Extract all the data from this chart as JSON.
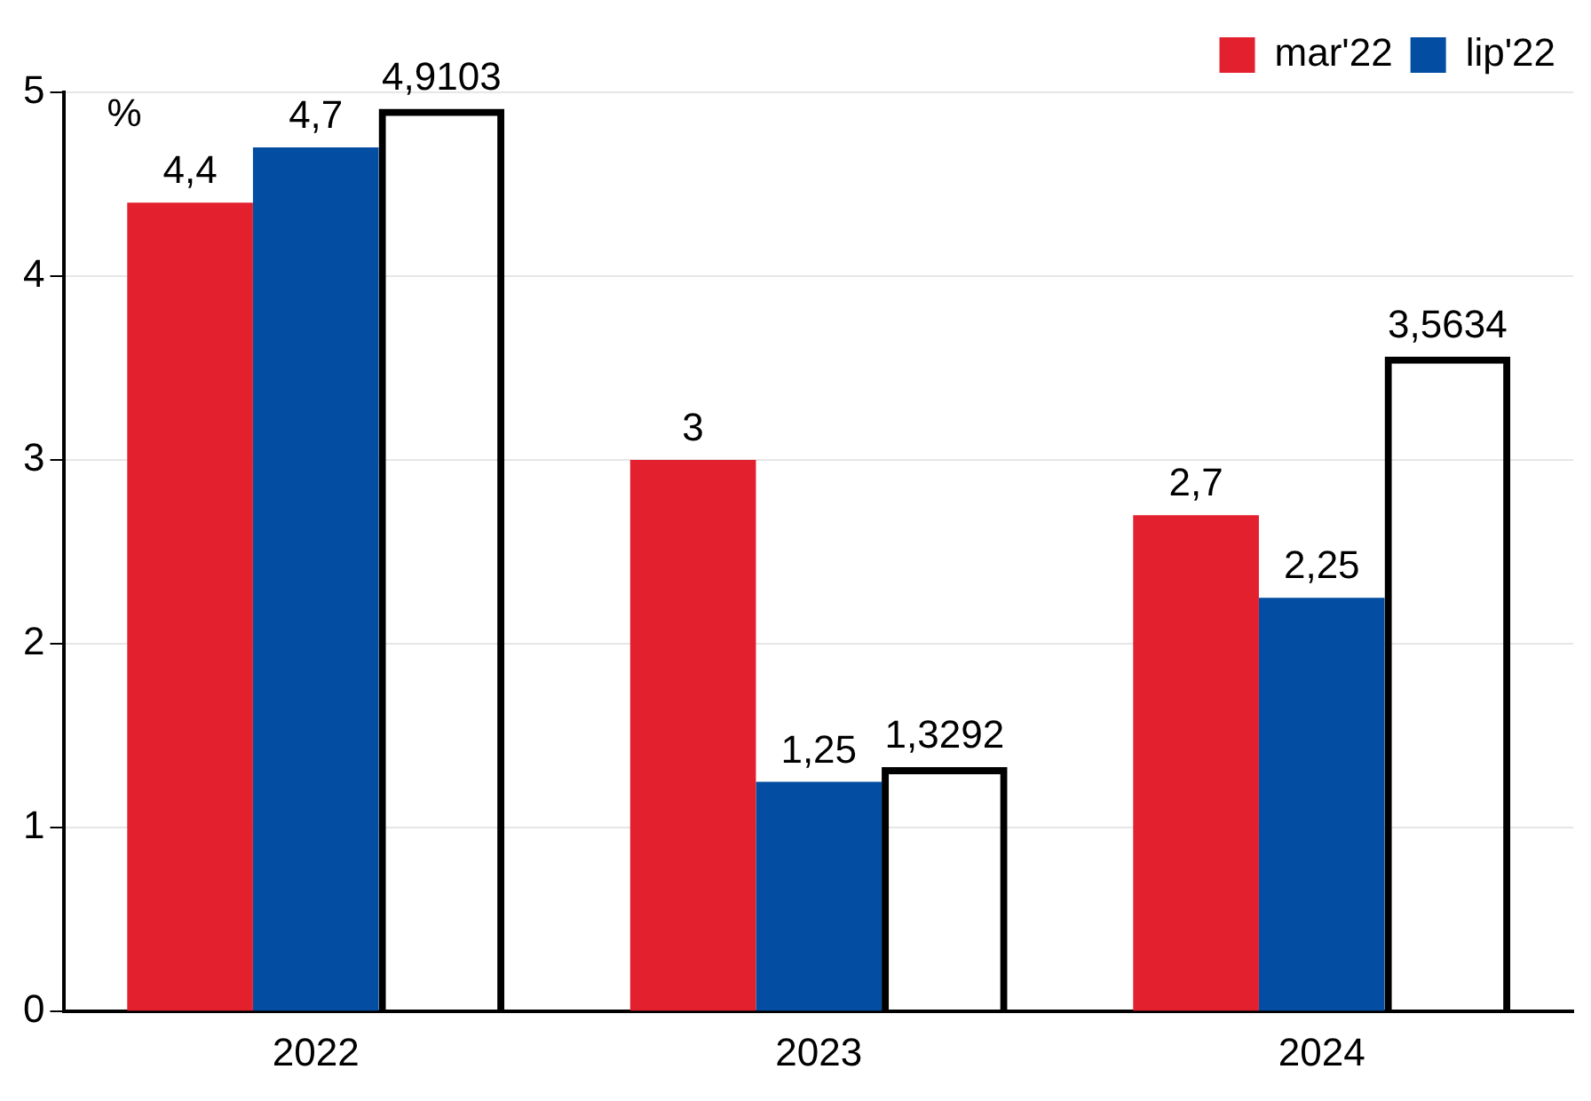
{
  "chart_data": {
    "type": "bar",
    "categories": [
      "2022",
      "2023",
      "2024"
    ],
    "series": [
      {
        "name": "mar'22",
        "color": "#e3202e",
        "values": [
          4.4,
          3,
          2.7
        ],
        "value_labels": [
          "4,4",
          "3",
          "2,7"
        ]
      },
      {
        "name": "lip'22",
        "color": "#034ea2",
        "values": [
          4.7,
          1.25,
          2.25
        ],
        "value_labels": [
          "4,7",
          "1,25",
          "2,25"
        ]
      },
      {
        "color": "#000000",
        "values": [
          4.9103,
          1.3292,
          3.5634
        ],
        "value_labels": [
          "4,9103",
          "1,3292",
          "3,5634"
        ]
      }
    ],
    "ylim": [
      0,
      5
    ],
    "yticks": [
      0,
      1,
      2,
      3,
      4,
      5
    ],
    "grid": "y",
    "legend": "top right",
    "annotations": [
      "%"
    ]
  }
}
